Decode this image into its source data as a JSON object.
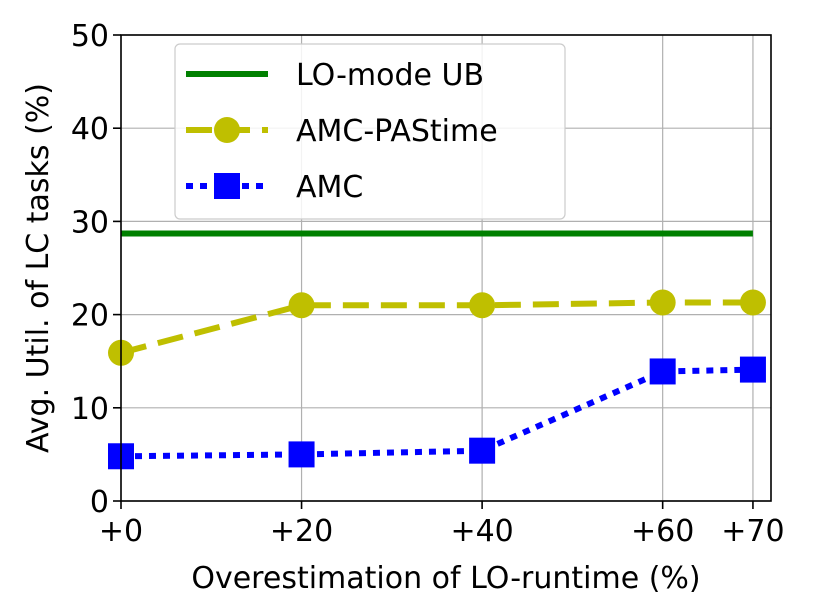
{
  "chart_data": {
    "type": "line",
    "xlabel": "Overestimation of LO-runtime (%)",
    "ylabel": "Avg. Util. of LC tasks (%)",
    "x": [
      0,
      20,
      40,
      60,
      70
    ],
    "x_tick_values": [
      0,
      20,
      40,
      60,
      70
    ],
    "x_tick_labels": [
      "+0",
      "+20",
      "+40",
      "+60",
      "+70"
    ],
    "y_tick_values": [
      0,
      10,
      20,
      30,
      40,
      50
    ],
    "y_tick_labels": [
      "0",
      "10",
      "20",
      "30",
      "40",
      "50"
    ],
    "xlim": [
      0,
      72
    ],
    "ylim": [
      0,
      50
    ],
    "grid": true,
    "legend_position": "upper-left",
    "series": [
      {
        "name": "LO-mode UB",
        "values": [
          28.7,
          28.7,
          28.7,
          28.7,
          28.7
        ],
        "color": "#008000",
        "linestyle": "solid",
        "marker": "none"
      },
      {
        "name": "AMC-PAStime",
        "values": [
          15.9,
          21.0,
          21.0,
          21.3,
          21.3
        ],
        "color": "#bfbf00",
        "linestyle": "dashed",
        "marker": "circle"
      },
      {
        "name": "AMC",
        "values": [
          4.8,
          5.0,
          5.4,
          13.9,
          14.1
        ],
        "color": "#0000ff",
        "linestyle": "dotted",
        "marker": "square"
      }
    ]
  }
}
